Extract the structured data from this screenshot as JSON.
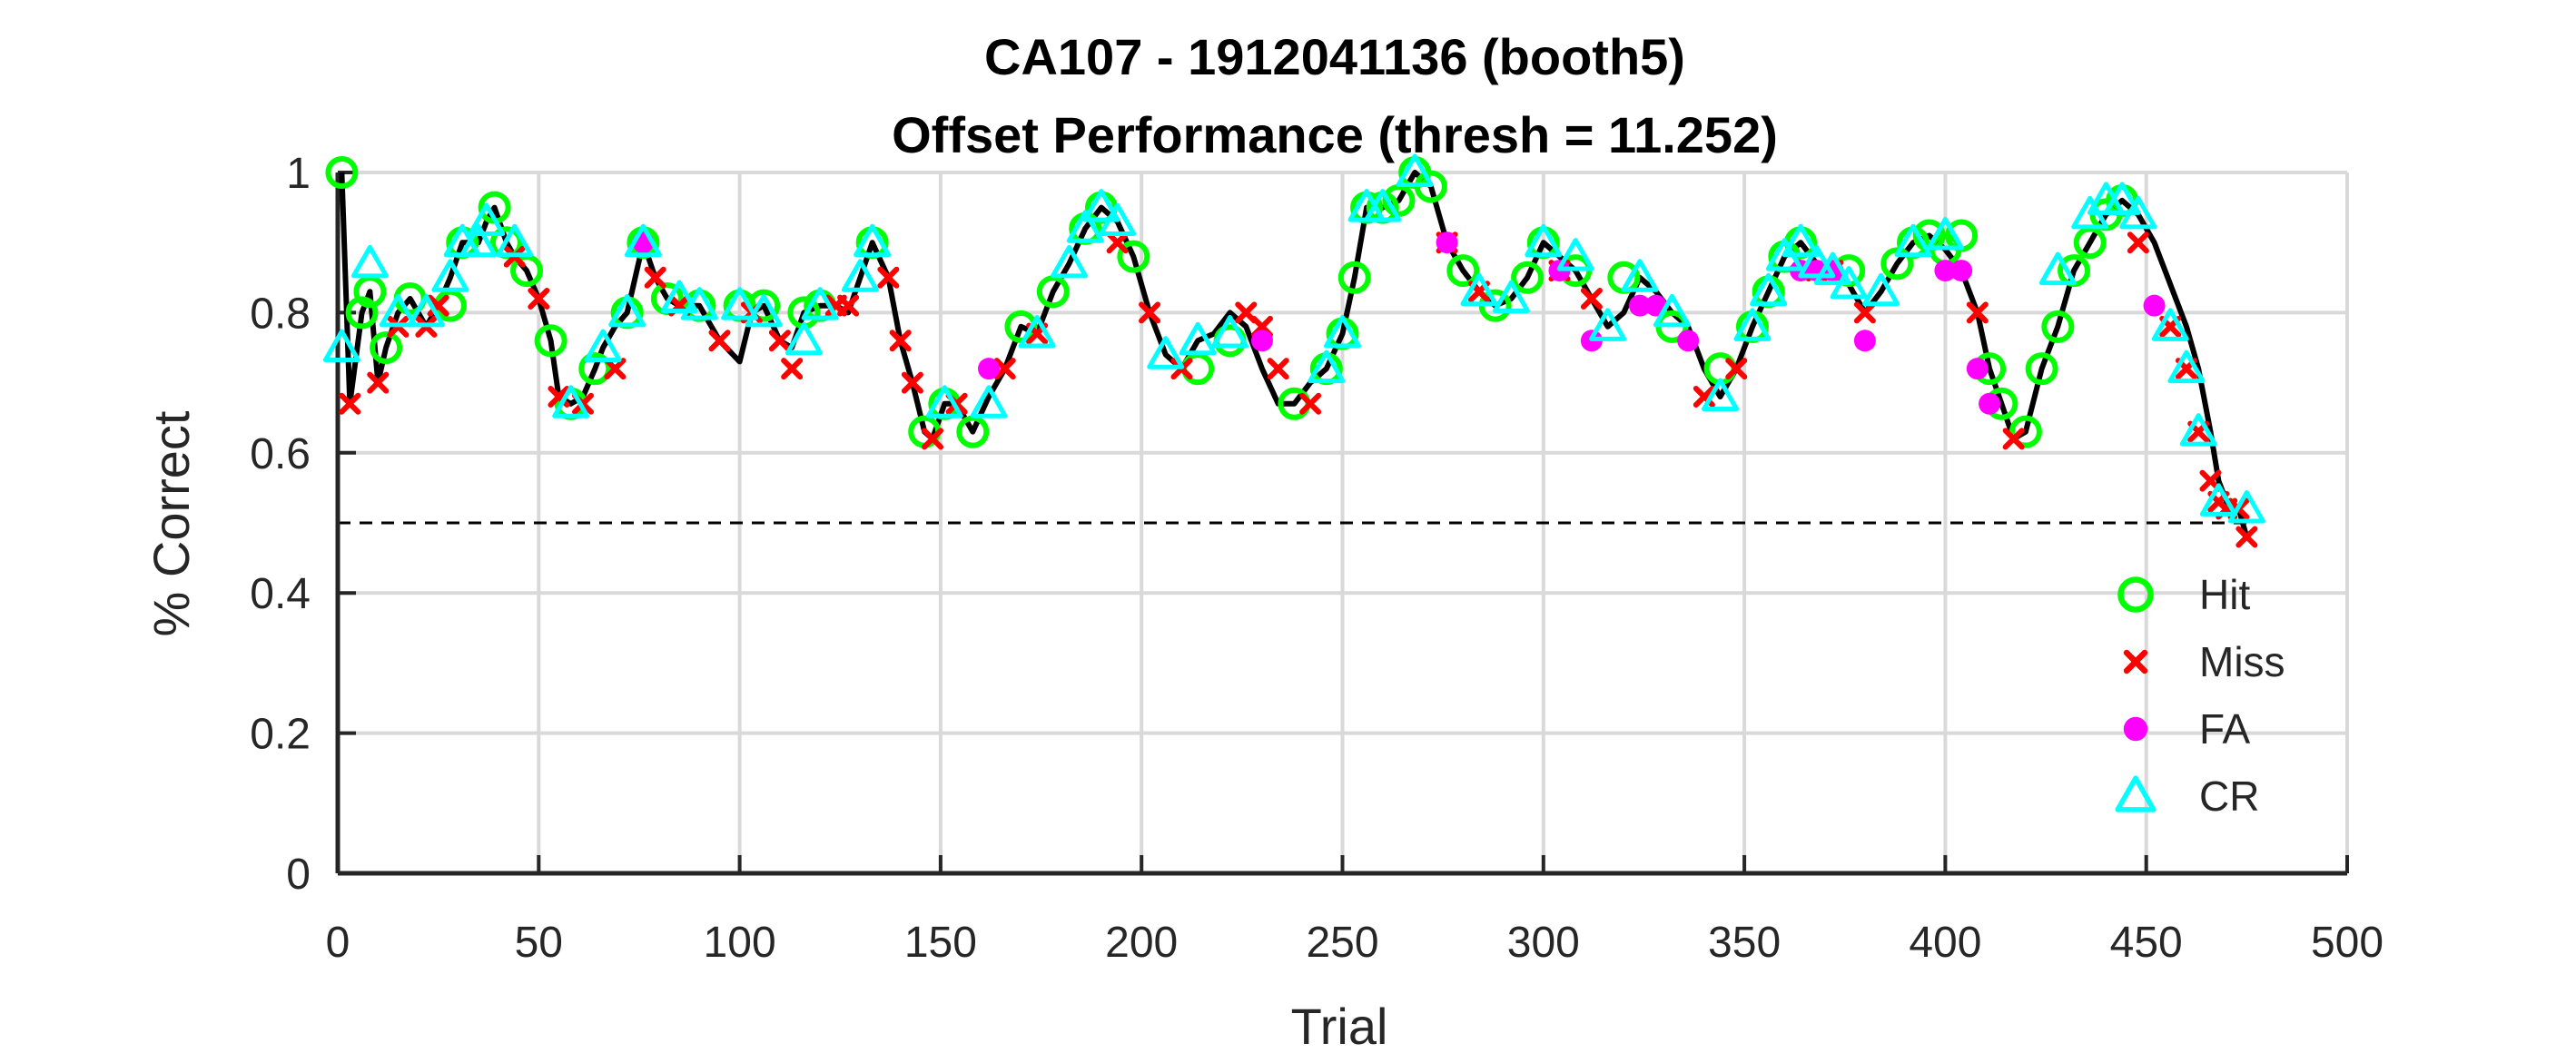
{
  "chart_data": {
    "type": "line",
    "title": "CA107 - 1912041136 (booth5)",
    "subtitle": "Offset Performance (thresh = 11.252)",
    "xlabel": "Trial",
    "ylabel": "% Correct",
    "xlim": [
      0,
      500
    ],
    "ylim": [
      0,
      1
    ],
    "xticks": [
      0,
      50,
      100,
      150,
      200,
      250,
      300,
      350,
      400,
      450,
      500
    ],
    "yticks": [
      0,
      0.2,
      0.4,
      0.6,
      0.8,
      1
    ],
    "grid": true,
    "legend_position": "bottom-right",
    "reference_line": {
      "y": 0.5,
      "style": "dashed",
      "color": "#000000"
    },
    "colors": {
      "performance_line": "#000000",
      "hit": "#00ff00",
      "miss": "#ff0000",
      "fa": "#ff00ff",
      "cr": "#00ffff",
      "grid": "#d9d9d9",
      "axis": "#262626"
    },
    "performance": {
      "x": [
        1,
        3,
        6,
        8,
        10,
        12,
        15,
        18,
        22,
        25,
        28,
        31,
        35,
        37,
        39,
        42,
        44,
        47,
        50,
        53,
        55,
        58,
        61,
        64,
        66,
        69,
        72,
        76,
        79,
        82,
        85,
        90,
        95,
        100,
        103,
        106,
        110,
        113,
        116,
        120,
        124,
        127,
        130,
        133,
        137,
        140,
        143,
        146,
        148,
        151,
        154,
        158,
        162,
        166,
        170,
        174,
        178,
        182,
        186,
        190,
        194,
        198,
        202,
        206,
        210,
        214,
        218,
        222,
        226,
        230,
        234,
        238,
        242,
        246,
        250,
        253,
        256,
        260,
        264,
        268,
        272,
        276,
        280,
        284,
        288,
        292,
        296,
        300,
        304,
        308,
        312,
        316,
        320,
        324,
        328,
        332,
        336,
        340,
        344,
        348,
        352,
        356,
        360,
        364,
        368,
        372,
        376,
        380,
        384,
        388,
        392,
        396,
        400,
        404,
        408,
        411,
        414,
        417,
        420,
        424,
        428,
        432,
        436,
        440,
        444,
        448,
        452,
        456,
        460,
        463,
        466,
        468,
        470,
        473,
        475
      ],
      "y": [
        1,
        0.67,
        0.8,
        0.83,
        0.7,
        0.75,
        0.8,
        0.82,
        0.78,
        0.81,
        0.85,
        0.9,
        0.9,
        0.93,
        0.95,
        0.9,
        0.88,
        0.86,
        0.82,
        0.76,
        0.68,
        0.67,
        0.68,
        0.72,
        0.75,
        0.78,
        0.8,
        0.9,
        0.85,
        0.82,
        0.81,
        0.81,
        0.76,
        0.73,
        0.8,
        0.81,
        0.76,
        0.75,
        0.8,
        0.81,
        0.81,
        0.8,
        0.85,
        0.9,
        0.85,
        0.76,
        0.7,
        0.63,
        0.62,
        0.67,
        0.67,
        0.63,
        0.68,
        0.72,
        0.78,
        0.77,
        0.83,
        0.87,
        0.92,
        0.95,
        0.93,
        0.88,
        0.8,
        0.74,
        0.72,
        0.76,
        0.77,
        0.8,
        0.78,
        0.72,
        0.67,
        0.67,
        0.7,
        0.72,
        0.77,
        0.85,
        0.95,
        0.95,
        0.96,
        1,
        0.98,
        0.9,
        0.86,
        0.83,
        0.81,
        0.82,
        0.85,
        0.9,
        0.88,
        0.86,
        0.82,
        0.78,
        0.8,
        0.85,
        0.83,
        0.8,
        0.78,
        0.72,
        0.68,
        0.72,
        0.78,
        0.83,
        0.88,
        0.9,
        0.87,
        0.86,
        0.84,
        0.8,
        0.83,
        0.87,
        0.9,
        0.91,
        0.89,
        0.86,
        0.8,
        0.72,
        0.67,
        0.62,
        0.63,
        0.72,
        0.78,
        0.86,
        0.9,
        0.94,
        0.96,
        0.94,
        0.9,
        0.84,
        0.78,
        0.72,
        0.63,
        0.56,
        0.53,
        0.52,
        0.48
      ]
    },
    "series": [
      {
        "name": "Hit",
        "marker": "circle",
        "x": [
          1,
          6,
          8,
          12,
          18,
          28,
          31,
          39,
          42,
          47,
          53,
          58,
          64,
          72,
          76,
          82,
          90,
          100,
          106,
          116,
          120,
          133,
          146,
          151,
          158,
          170,
          178,
          186,
          190,
          198,
          214,
          222,
          238,
          246,
          250,
          253,
          256,
          260,
          264,
          268,
          272,
          280,
          288,
          296,
          300,
          308,
          320,
          332,
          344,
          352,
          356,
          360,
          364,
          376,
          388,
          392,
          396,
          400,
          404,
          411,
          414,
          420,
          424,
          428,
          432,
          436,
          440,
          444
        ],
        "y": [
          1,
          0.8,
          0.83,
          0.75,
          0.82,
          0.81,
          0.9,
          0.95,
          0.9,
          0.86,
          0.76,
          0.67,
          0.72,
          0.8,
          0.9,
          0.82,
          0.81,
          0.81,
          0.81,
          0.8,
          0.81,
          0.9,
          0.63,
          0.67,
          0.63,
          0.78,
          0.83,
          0.92,
          0.95,
          0.88,
          0.72,
          0.76,
          0.67,
          0.72,
          0.77,
          0.85,
          0.95,
          0.95,
          0.96,
          1,
          0.98,
          0.86,
          0.81,
          0.85,
          0.9,
          0.86,
          0.85,
          0.78,
          0.72,
          0.78,
          0.83,
          0.88,
          0.9,
          0.86,
          0.87,
          0.9,
          0.91,
          0.89,
          0.91,
          0.72,
          0.67,
          0.63,
          0.72,
          0.78,
          0.86,
          0.9,
          0.94,
          0.96
        ]
      },
      {
        "name": "Miss",
        "marker": "x",
        "x": [
          3,
          10,
          15,
          22,
          25,
          44,
          50,
          55,
          61,
          69,
          79,
          85,
          95,
          103,
          110,
          113,
          124,
          127,
          137,
          140,
          143,
          148,
          154,
          166,
          174,
          194,
          202,
          210,
          226,
          230,
          234,
          242,
          276,
          284,
          304,
          312,
          340,
          348,
          368,
          372,
          380,
          408,
          417,
          448,
          456,
          460,
          463,
          466,
          468,
          470,
          473,
          475
        ],
        "y": [
          0.67,
          0.7,
          0.78,
          0.78,
          0.81,
          0.88,
          0.82,
          0.68,
          0.67,
          0.72,
          0.85,
          0.81,
          0.76,
          0.8,
          0.76,
          0.72,
          0.81,
          0.81,
          0.85,
          0.76,
          0.7,
          0.62,
          0.67,
          0.72,
          0.77,
          0.9,
          0.8,
          0.72,
          0.8,
          0.78,
          0.72,
          0.67,
          0.9,
          0.83,
          0.86,
          0.82,
          0.68,
          0.72,
          0.86,
          0.86,
          0.8,
          0.8,
          0.62,
          0.9,
          0.78,
          0.72,
          0.63,
          0.56,
          0.53,
          0.52,
          0.52,
          0.48
        ]
      },
      {
        "name": "FA",
        "marker": "dot",
        "x": [
          76,
          162,
          230,
          276,
          304,
          312,
          324,
          328,
          336,
          364,
          368,
          372,
          380,
          400,
          404,
          408,
          411,
          452
        ],
        "y": [
          0.9,
          0.72,
          0.76,
          0.9,
          0.86,
          0.76,
          0.81,
          0.81,
          0.76,
          0.86,
          0.86,
          0.86,
          0.76,
          0.86,
          0.86,
          0.72,
          0.67,
          0.81
        ]
      },
      {
        "name": "CR",
        "marker": "triangle",
        "x": [
          1,
          8,
          15,
          22,
          28,
          31,
          35,
          37,
          44,
          58,
          66,
          72,
          76,
          85,
          90,
          100,
          106,
          116,
          120,
          130,
          133,
          151,
          162,
          174,
          182,
          186,
          190,
          194,
          206,
          214,
          222,
          246,
          250,
          256,
          260,
          268,
          284,
          292,
          300,
          308,
          316,
          324,
          332,
          344,
          352,
          356,
          360,
          364,
          368,
          372,
          376,
          384,
          392,
          400,
          428,
          436,
          440,
          444,
          448,
          456,
          460,
          463,
          468,
          475
        ],
        "y": [
          0.75,
          0.87,
          0.8,
          0.8,
          0.85,
          0.9,
          0.9,
          0.93,
          0.9,
          0.67,
          0.75,
          0.8,
          0.9,
          0.82,
          0.81,
          0.81,
          0.8,
          0.76,
          0.81,
          0.85,
          0.9,
          0.67,
          0.67,
          0.77,
          0.87,
          0.92,
          0.95,
          0.93,
          0.74,
          0.76,
          0.77,
          0.72,
          0.77,
          0.95,
          0.95,
          1,
          0.83,
          0.82,
          0.9,
          0.88,
          0.78,
          0.85,
          0.8,
          0.68,
          0.78,
          0.83,
          0.88,
          0.9,
          0.87,
          0.86,
          0.84,
          0.83,
          0.9,
          0.91,
          0.86,
          0.94,
          0.96,
          0.96,
          0.94,
          0.78,
          0.72,
          0.63,
          0.53,
          0.52
        ]
      }
    ]
  }
}
